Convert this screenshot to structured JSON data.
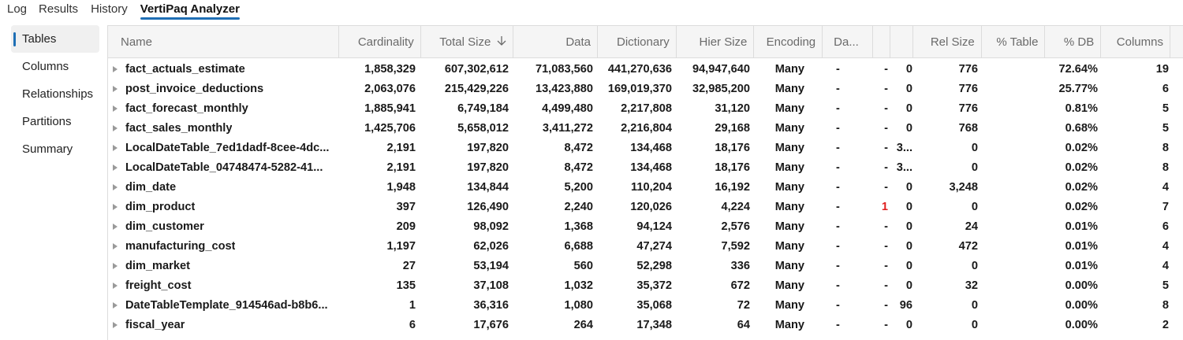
{
  "tabs": [
    {
      "label": "Log",
      "active": false
    },
    {
      "label": "Results",
      "active": false
    },
    {
      "label": "History",
      "active": false
    },
    {
      "label": "VertiPaq Analyzer",
      "active": true
    }
  ],
  "sidenav": [
    {
      "label": "Tables",
      "active": true
    },
    {
      "label": "Columns",
      "active": false
    },
    {
      "label": "Relationships",
      "active": false
    },
    {
      "label": "Partitions",
      "active": false
    },
    {
      "label": "Summary",
      "active": false
    }
  ],
  "columns": [
    {
      "label": "Name"
    },
    {
      "label": "Cardinality"
    },
    {
      "label": "Total Size",
      "sort": "descending"
    },
    {
      "label": "Data"
    },
    {
      "label": "Dictionary"
    },
    {
      "label": "Hier Size"
    },
    {
      "label": "Encoding"
    },
    {
      "label": "Da..."
    },
    {
      "label": ""
    },
    {
      "label": ""
    },
    {
      "label": "Rel Size"
    },
    {
      "label": "% Table"
    },
    {
      "label": "% DB"
    },
    {
      "label": "Columns"
    }
  ],
  "accent_color": "#1f6fb5",
  "warning_color": "#e02020",
  "rows": [
    {
      "name": "fact_actuals_estimate",
      "cardinality": "1,858,329",
      "total_size": "607,302,612",
      "data": "71,083,560",
      "dictionary": "441,270,636",
      "hier_size": "94,947,640",
      "encoding": "Many",
      "da": "-",
      "c1": "-",
      "c2": "0",
      "rel_size": "776",
      "pct_table": "",
      "pct_db": "72.64%",
      "columns": "19"
    },
    {
      "name": "post_invoice_deductions",
      "cardinality": "2,063,076",
      "total_size": "215,429,226",
      "data": "13,423,880",
      "dictionary": "169,019,370",
      "hier_size": "32,985,200",
      "encoding": "Many",
      "da": "-",
      "c1": "-",
      "c2": "0",
      "rel_size": "776",
      "pct_table": "",
      "pct_db": "25.77%",
      "columns": "6"
    },
    {
      "name": "fact_forecast_monthly",
      "cardinality": "1,885,941",
      "total_size": "6,749,184",
      "data": "4,499,480",
      "dictionary": "2,217,808",
      "hier_size": "31,120",
      "encoding": "Many",
      "da": "-",
      "c1": "-",
      "c2": "0",
      "rel_size": "776",
      "pct_table": "",
      "pct_db": "0.81%",
      "columns": "5"
    },
    {
      "name": "fact_sales_monthly",
      "cardinality": "1,425,706",
      "total_size": "5,658,012",
      "data": "3,411,272",
      "dictionary": "2,216,804",
      "hier_size": "29,168",
      "encoding": "Many",
      "da": "-",
      "c1": "-",
      "c2": "0",
      "rel_size": "768",
      "pct_table": "",
      "pct_db": "0.68%",
      "columns": "5"
    },
    {
      "name": "LocalDateTable_7ed1dadf-8cee-4dc...",
      "cardinality": "2,191",
      "total_size": "197,820",
      "data": "8,472",
      "dictionary": "134,468",
      "hier_size": "18,176",
      "encoding": "Many",
      "da": "-",
      "c1": "-",
      "c2": "3...",
      "rel_size": "0",
      "pct_table": "",
      "pct_db": "0.02%",
      "columns": "8"
    },
    {
      "name": "LocalDateTable_04748474-5282-41...",
      "cardinality": "2,191",
      "total_size": "197,820",
      "data": "8,472",
      "dictionary": "134,468",
      "hier_size": "18,176",
      "encoding": "Many",
      "da": "-",
      "c1": "-",
      "c2": "3...",
      "rel_size": "0",
      "pct_table": "",
      "pct_db": "0.02%",
      "columns": "8"
    },
    {
      "name": "dim_date",
      "cardinality": "1,948",
      "total_size": "134,844",
      "data": "5,200",
      "dictionary": "110,204",
      "hier_size": "16,192",
      "encoding": "Many",
      "da": "-",
      "c1": "-",
      "c2": "0",
      "rel_size": "3,248",
      "pct_table": "",
      "pct_db": "0.02%",
      "columns": "4"
    },
    {
      "name": "dim_product",
      "cardinality": "397",
      "total_size": "126,490",
      "data": "2,240",
      "dictionary": "120,026",
      "hier_size": "4,224",
      "encoding": "Many",
      "da": "-",
      "c1": "1",
      "c1_red": true,
      "c2": "0",
      "rel_size": "0",
      "pct_table": "",
      "pct_db": "0.02%",
      "columns": "7"
    },
    {
      "name": "dim_customer",
      "cardinality": "209",
      "total_size": "98,092",
      "data": "1,368",
      "dictionary": "94,124",
      "hier_size": "2,576",
      "encoding": "Many",
      "da": "-",
      "c1": "-",
      "c2": "0",
      "rel_size": "24",
      "pct_table": "",
      "pct_db": "0.01%",
      "columns": "6"
    },
    {
      "name": "manufacturing_cost",
      "cardinality": "1,197",
      "total_size": "62,026",
      "data": "6,688",
      "dictionary": "47,274",
      "hier_size": "7,592",
      "encoding": "Many",
      "da": "-",
      "c1": "-",
      "c2": "0",
      "rel_size": "472",
      "pct_table": "",
      "pct_db": "0.01%",
      "columns": "4"
    },
    {
      "name": "dim_market",
      "cardinality": "27",
      "total_size": "53,194",
      "data": "560",
      "dictionary": "52,298",
      "hier_size": "336",
      "encoding": "Many",
      "da": "-",
      "c1": "-",
      "c2": "0",
      "rel_size": "0",
      "pct_table": "",
      "pct_db": "0.01%",
      "columns": "4"
    },
    {
      "name": "freight_cost",
      "cardinality": "135",
      "total_size": "37,108",
      "data": "1,032",
      "dictionary": "35,372",
      "hier_size": "672",
      "encoding": "Many",
      "da": "-",
      "c1": "-",
      "c2": "0",
      "rel_size": "32",
      "pct_table": "",
      "pct_db": "0.00%",
      "columns": "5"
    },
    {
      "name": "DateTableTemplate_914546ad-b8b6...",
      "cardinality": "1",
      "total_size": "36,316",
      "data": "1,080",
      "dictionary": "35,068",
      "hier_size": "72",
      "encoding": "Many",
      "da": "-",
      "c1": "-",
      "c2": "96",
      "rel_size": "0",
      "pct_table": "",
      "pct_db": "0.00%",
      "columns": "8"
    },
    {
      "name": "fiscal_year",
      "cardinality": "6",
      "total_size": "17,676",
      "data": "264",
      "dictionary": "17,348",
      "hier_size": "64",
      "encoding": "Many",
      "da": "-",
      "c1": "-",
      "c2": "0",
      "rel_size": "0",
      "pct_table": "",
      "pct_db": "0.00%",
      "columns": "2"
    }
  ]
}
